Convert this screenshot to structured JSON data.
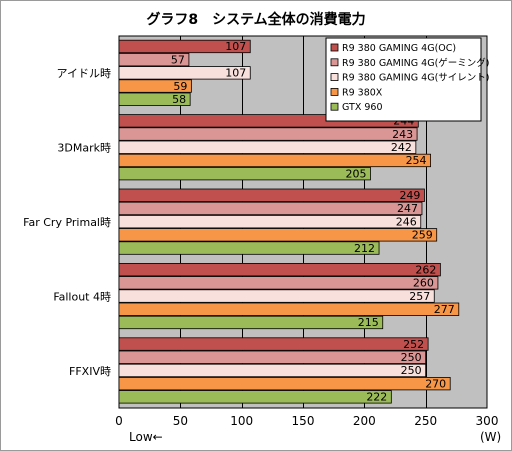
{
  "chart_data": {
    "type": "bar",
    "orientation": "horizontal",
    "title": "グラフ8　システム全体の消費電力",
    "categories": [
      "アイドル時",
      "3DMark時",
      "Far Cry Primal時",
      "Fallout 4時",
      "FFXIV時"
    ],
    "series": [
      {
        "name": "R9 380 GAMING 4G(OC)",
        "color": "#c0504d",
        "values": [
          107,
          244,
          249,
          262,
          252
        ]
      },
      {
        "name": "R9 380 GAMING 4G(ゲーミング)",
        "color": "#d99694",
        "values": [
          57,
          243,
          247,
          260,
          250
        ]
      },
      {
        "name": "R9 380 GAMING 4G(サイレント)",
        "color": "#f8e0dc",
        "values": [
          107,
          242,
          246,
          257,
          250
        ]
      },
      {
        "name": "R9 380X",
        "color": "#f79646",
        "values": [
          59,
          254,
          259,
          277,
          270
        ]
      },
      {
        "name": "GTX 960",
        "color": "#9bbb59",
        "values": [
          58,
          205,
          212,
          215,
          222
        ]
      }
    ],
    "xlim": [
      0,
      300
    ],
    "xticks": [
      0,
      50,
      100,
      150,
      200,
      250,
      300
    ],
    "unit": "(W)",
    "axis_note": "Low←",
    "grid": true,
    "legend_position": "top-right",
    "plot_background": "#c0c0c0"
  }
}
